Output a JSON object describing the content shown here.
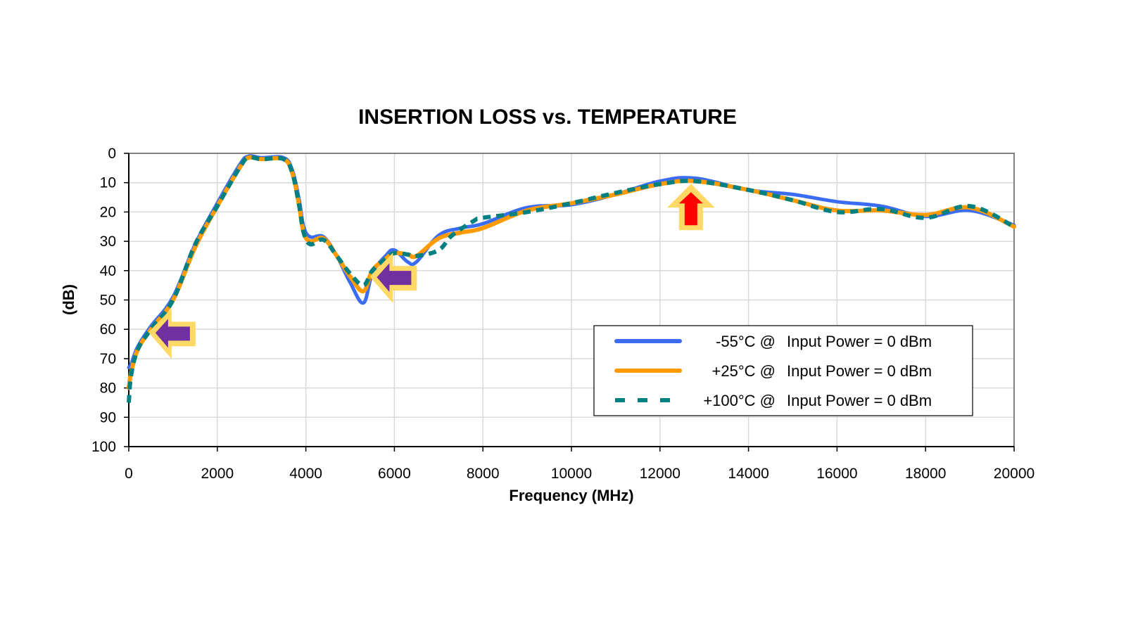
{
  "chart_data": {
    "type": "line",
    "title": "INSERTION LOSS vs. TEMPERATURE",
    "xlabel": "Frequency (MHz)",
    "ylabel": "(dB)",
    "xlim": [
      0,
      20000
    ],
    "ylim": [
      0,
      100
    ],
    "y_inverted": true,
    "x_ticks": [
      0,
      2000,
      4000,
      6000,
      8000,
      10000,
      12000,
      14000,
      16000,
      18000,
      20000
    ],
    "y_ticks": [
      0,
      10,
      20,
      30,
      40,
      50,
      60,
      70,
      80,
      90,
      100
    ],
    "grid": true,
    "legend_position": "bottom-right",
    "series": [
      {
        "name": "-55°C @",
        "legend_suffix": "Input Power = 0 dBm",
        "color": "#3a6cf4",
        "style": "solid",
        "x": [
          0,
          50,
          200,
          500,
          1000,
          1500,
          2000,
          2500,
          2700,
          3000,
          3500,
          3700,
          3850,
          3950,
          4100,
          4400,
          4700,
          5000,
          5300,
          5500,
          5800,
          6000,
          6300,
          6500,
          7000,
          7500,
          8000,
          9000,
          10000,
          11000,
          12000,
          12800,
          14000,
          15000,
          16000,
          17000,
          18000,
          19000,
          20000
        ],
        "y": [
          73,
          72,
          66,
          59,
          49,
          31,
          17,
          4,
          1,
          1.5,
          1.5,
          6,
          16,
          25,
          28.5,
          28.5,
          35,
          44,
          51,
          41,
          35,
          33,
          37,
          37,
          28,
          25.5,
          24,
          18.5,
          17.5,
          14,
          9.5,
          8.5,
          12.5,
          14,
          16.5,
          18,
          21.5,
          19.5,
          24.5
        ]
      },
      {
        "name": "+25°C @",
        "legend_suffix": "Input Power = 0 dBm",
        "color": "#ff9a00",
        "style": "solid",
        "x": [
          0,
          50,
          200,
          500,
          1000,
          1500,
          2000,
          2500,
          2700,
          3000,
          3500,
          3700,
          3850,
          3950,
          4100,
          4400,
          4700,
          5000,
          5300,
          5500,
          5800,
          6000,
          6300,
          6500,
          7000,
          7500,
          8000,
          9000,
          10000,
          11000,
          12000,
          12800,
          14000,
          15000,
          16000,
          17000,
          18000,
          19000,
          20000
        ],
        "y": [
          80,
          75,
          67,
          60,
          50,
          32,
          18,
          5,
          1.5,
          2,
          2,
          7,
          18,
          27,
          30,
          29,
          35,
          42,
          47,
          40,
          36,
          34,
          34.5,
          35,
          29,
          27,
          25.5,
          19.5,
          17,
          14,
          10.5,
          9.5,
          12.5,
          16,
          19.5,
          19.5,
          21,
          18.5,
          25
        ]
      },
      {
        "name": "+100°C @",
        "legend_suffix": "Input Power = 0 dBm",
        "color": "#008080",
        "style": "dashed",
        "x": [
          0,
          50,
          200,
          500,
          1000,
          1500,
          2000,
          2500,
          2700,
          3000,
          3500,
          3700,
          3850,
          3950,
          4100,
          4400,
          4700,
          5000,
          5300,
          5500,
          5800,
          6000,
          6300,
          6500,
          7000,
          7300,
          7800,
          8000,
          9000,
          10000,
          11000,
          12000,
          12800,
          14000,
          15000,
          16000,
          17000,
          18000,
          19000,
          20000
        ],
        "y": [
          85,
          76,
          67,
          60,
          50,
          31,
          18,
          5,
          1.5,
          2,
          2,
          7,
          18,
          27,
          31,
          29.5,
          35,
          41,
          45,
          40,
          36,
          34,
          34.5,
          35,
          33,
          28,
          23,
          22,
          20,
          17,
          13.5,
          10.5,
          9.5,
          12.5,
          16,
          20,
          19,
          22,
          18,
          25
        ]
      }
    ],
    "annotations": [
      {
        "type": "arrow",
        "direction": "left",
        "fill": "#7030a0",
        "outline": "#ffd966",
        "at_x": 1000,
        "at_y": 61
      },
      {
        "type": "arrow",
        "direction": "left",
        "fill": "#7030a0",
        "outline": "#ffd966",
        "at_x": 6000,
        "at_y": 42
      },
      {
        "type": "arrow",
        "direction": "up",
        "fill": "#ff0000",
        "outline": "#ffd966",
        "at_x": 12700,
        "at_y": 19
      }
    ]
  }
}
